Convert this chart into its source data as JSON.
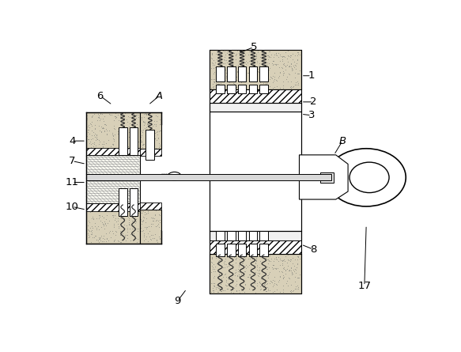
{
  "bg_color": "#ffffff",
  "lc": "#000000",
  "sand_color": "#d8d0b8",
  "hatch_fc": "#ffffff",
  "metal_color": "#e0e0e0",
  "spring_color": "#303030",
  "pin_fc": "#ffffff",
  "key_circle_fc": "#ffffff"
}
